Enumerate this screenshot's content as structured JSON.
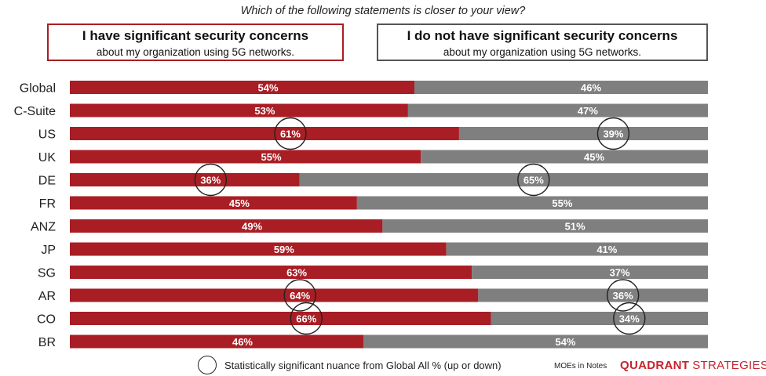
{
  "question": "Which of the following statements is closer to your view?",
  "header_left": {
    "title": "I have significant security concerns",
    "subtitle": "about my organization using 5G networks."
  },
  "header_right": {
    "title": "I do not have significant security concerns",
    "subtitle": "about my organization using 5G networks."
  },
  "legend": {
    "text": "Statistically significant nuance from Global All % (up or down)"
  },
  "footer": {
    "moe": "MOEs in Notes",
    "brand_bold": "QUADRANT",
    "brand_light": "STRATEGIES"
  },
  "colors": {
    "concerned": "#a81e24",
    "not_concerned": "#7f7f7f",
    "label_text": "#ffffff",
    "circle": "#222222"
  },
  "chart_data": {
    "type": "bar",
    "orientation": "horizontal",
    "stacked": true,
    "percent_scale": [
      0,
      100
    ],
    "categories": [
      "Global",
      "C-Suite",
      "US",
      "UK",
      "DE",
      "FR",
      "ANZ",
      "JP",
      "SG",
      "AR",
      "CO",
      "BR"
    ],
    "series": [
      {
        "name": "I have significant security concerns",
        "values": [
          54,
          53,
          61,
          55,
          36,
          45,
          49,
          59,
          63,
          64,
          66,
          46
        ],
        "labels": [
          "54%",
          "53%",
          "61%",
          "55%",
          "36%",
          "45%",
          "49%",
          "59%",
          "63%",
          "64%",
          "66%",
          "46%"
        ],
        "significant": [
          false,
          false,
          true,
          false,
          true,
          false,
          false,
          false,
          false,
          true,
          true,
          false
        ]
      },
      {
        "name": "I do not have significant security concerns",
        "values": [
          46,
          47,
          39,
          45,
          65,
          55,
          51,
          41,
          37,
          36,
          34,
          54
        ],
        "labels": [
          "46%",
          "47%",
          "39%",
          "45%",
          "65%",
          "55%",
          "51%",
          "41%",
          "37%",
          "36%",
          "34%",
          "54%"
        ],
        "significant": [
          false,
          false,
          true,
          false,
          true,
          false,
          false,
          false,
          false,
          true,
          true,
          false
        ]
      }
    ]
  }
}
